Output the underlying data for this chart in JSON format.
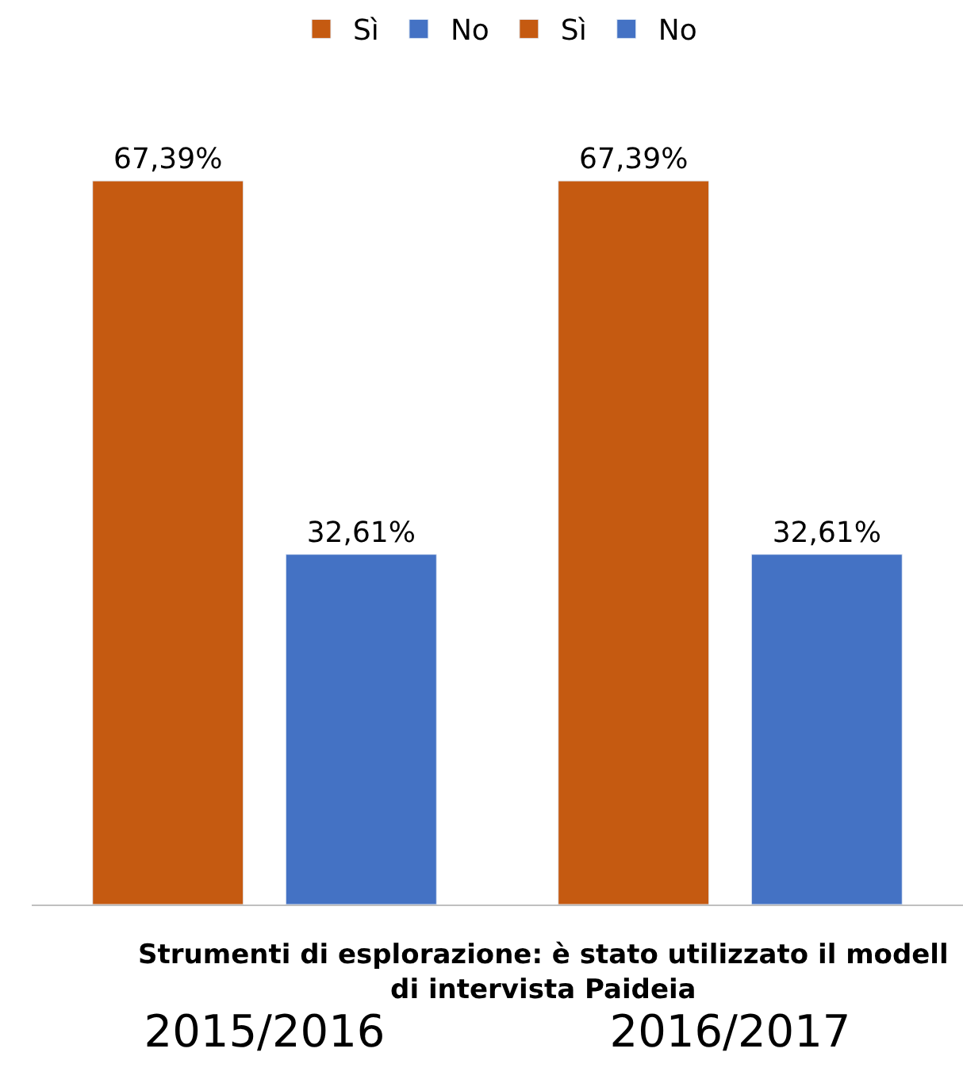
{
  "chart_data": {
    "type": "bar",
    "xlabel": "Strumenti di esplorazione: è stato utilizzato il modell di intervista Paideia",
    "categories": [
      "2015/2016",
      "2016/2017"
    ],
    "series": [
      {
        "name": "Sì",
        "color": "#c55a11",
        "values": [
          67.39,
          null
        ],
        "value_labels": [
          "67,39%",
          null
        ]
      },
      {
        "name": "No",
        "color": "#4472c4",
        "values": [
          32.61,
          null
        ],
        "value_labels": [
          "32,61%",
          null
        ]
      },
      {
        "name": "Sì",
        "color": "#c55a11",
        "values": [
          null,
          67.39
        ],
        "value_labels": [
          null,
          "67,39%"
        ]
      },
      {
        "name": "No",
        "color": "#4472c4",
        "values": [
          null,
          32.61
        ],
        "value_labels": [
          null,
          "32,61%"
        ]
      }
    ],
    "legend": "top"
  }
}
